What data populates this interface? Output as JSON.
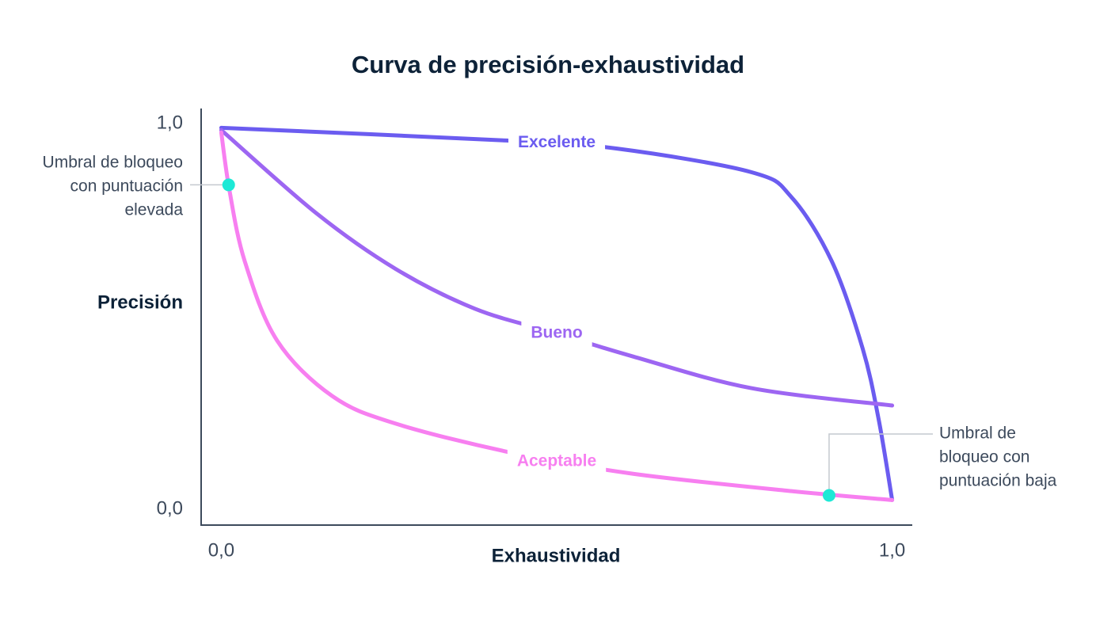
{
  "chart_data": {
    "type": "line",
    "title": "Curva de precisión-exhaustividad",
    "x_label": "Exhaustividad",
    "y_label": "Precisión",
    "xlim": [
      -0.03,
      1.03
    ],
    "ylim": [
      -0.03,
      1.05
    ],
    "xticks": [
      {
        "value": 0,
        "label": "0,0"
      },
      {
        "value": 1,
        "label": "1,0"
      }
    ],
    "yticks": [
      {
        "value": 0,
        "label": "0,0"
      },
      {
        "value": 1,
        "label": "1,0"
      }
    ],
    "grid": false,
    "series": [
      {
        "name": "Excelente",
        "color": "#6b5cf0",
        "x": [
          0,
          0.425,
          0.59,
          0.79,
          0.85,
          0.91,
          0.956,
          0.98,
          1.0
        ],
        "values": [
          1.0,
          0.967,
          0.946,
          0.885,
          0.82,
          0.654,
          0.428,
          0.243,
          0.035
        ]
      },
      {
        "name": "Bueno",
        "color": "#9d66f2",
        "x": [
          0,
          0.142,
          0.26,
          0.378,
          0.496,
          0.614,
          0.79,
          1.0
        ],
        "values": [
          0.994,
          0.778,
          0.634,
          0.531,
          0.469,
          0.407,
          0.325,
          0.28
        ]
      },
      {
        "name": "Aceptable",
        "color": "#f77ff0",
        "x": [
          0,
          0.012,
          0.035,
          0.083,
          0.165,
          0.26,
          0.437,
          0.614,
          0.85,
          1.0
        ],
        "values": [
          0.988,
          0.84,
          0.654,
          0.449,
          0.305,
          0.233,
          0.156,
          0.103,
          0.058,
          0.035
        ]
      }
    ],
    "annotations": [
      {
        "lines": [
          "Umbral de bloqueo",
          "con puntuación",
          "elevada"
        ],
        "x": 0.011,
        "y": 0.852,
        "color": "#1de9d6"
      },
      {
        "lines": [
          "Umbral de",
          "bloqueo con",
          "puntuación baja"
        ],
        "x": 0.906,
        "y": 0.047,
        "color": "#1de9d6"
      }
    ]
  }
}
